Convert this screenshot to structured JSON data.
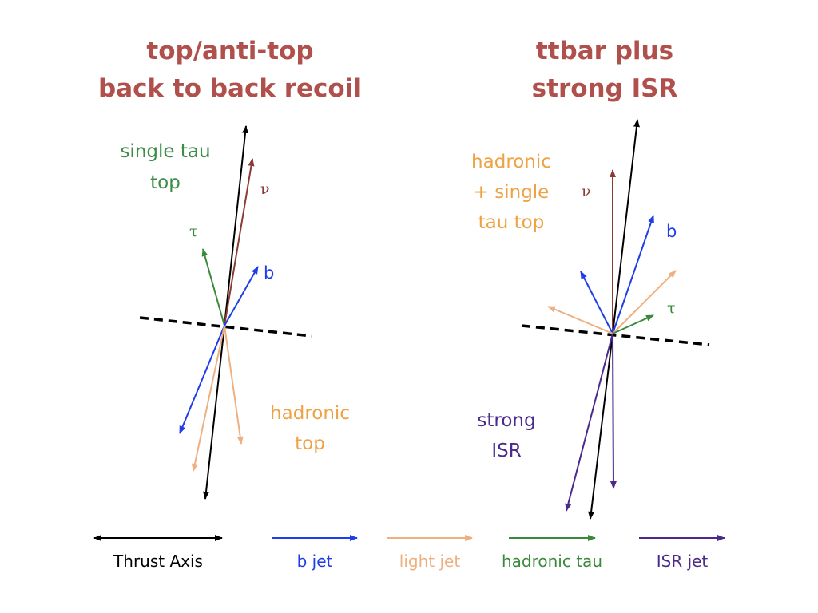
{
  "colors": {
    "title": "#b0504c",
    "thrust": "#000000",
    "b_jet": "#1f3de8",
    "light_jet": "#eeb080",
    "hadronic_tau": "#3a8a3c",
    "isr_jet": "#4b2a8c",
    "neutrino": "#8b3a34",
    "label_green": "#3d8c47",
    "label_orange": "#eea244",
    "label_purple": "#4b2a8c"
  },
  "left_panel": {
    "title_line1": "top/anti-top",
    "title_line2": "back to back recoil",
    "single_tau_line1": "single tau",
    "single_tau_line2": "top",
    "nu_label": "ν",
    "tau_label": "τ",
    "b_label": "b",
    "hadronic_line1": "hadronic",
    "hadronic_line2": "top"
  },
  "right_panel": {
    "title_line1": "ttbar plus",
    "title_line2": "strong ISR",
    "hadronic_line1": "hadronic",
    "hadronic_line2": "+ single",
    "hadronic_line3": "tau top",
    "nu_label": "ν",
    "b_label": "b",
    "tau_label": "τ",
    "strong_line1": "strong",
    "strong_line2": "ISR"
  },
  "legend": {
    "thrust_axis": "Thrust Axis",
    "b_jet": "b jet",
    "light_jet": "light jet",
    "hadronic_tau": "hadronic tau",
    "isr_jet": "ISR jet"
  }
}
